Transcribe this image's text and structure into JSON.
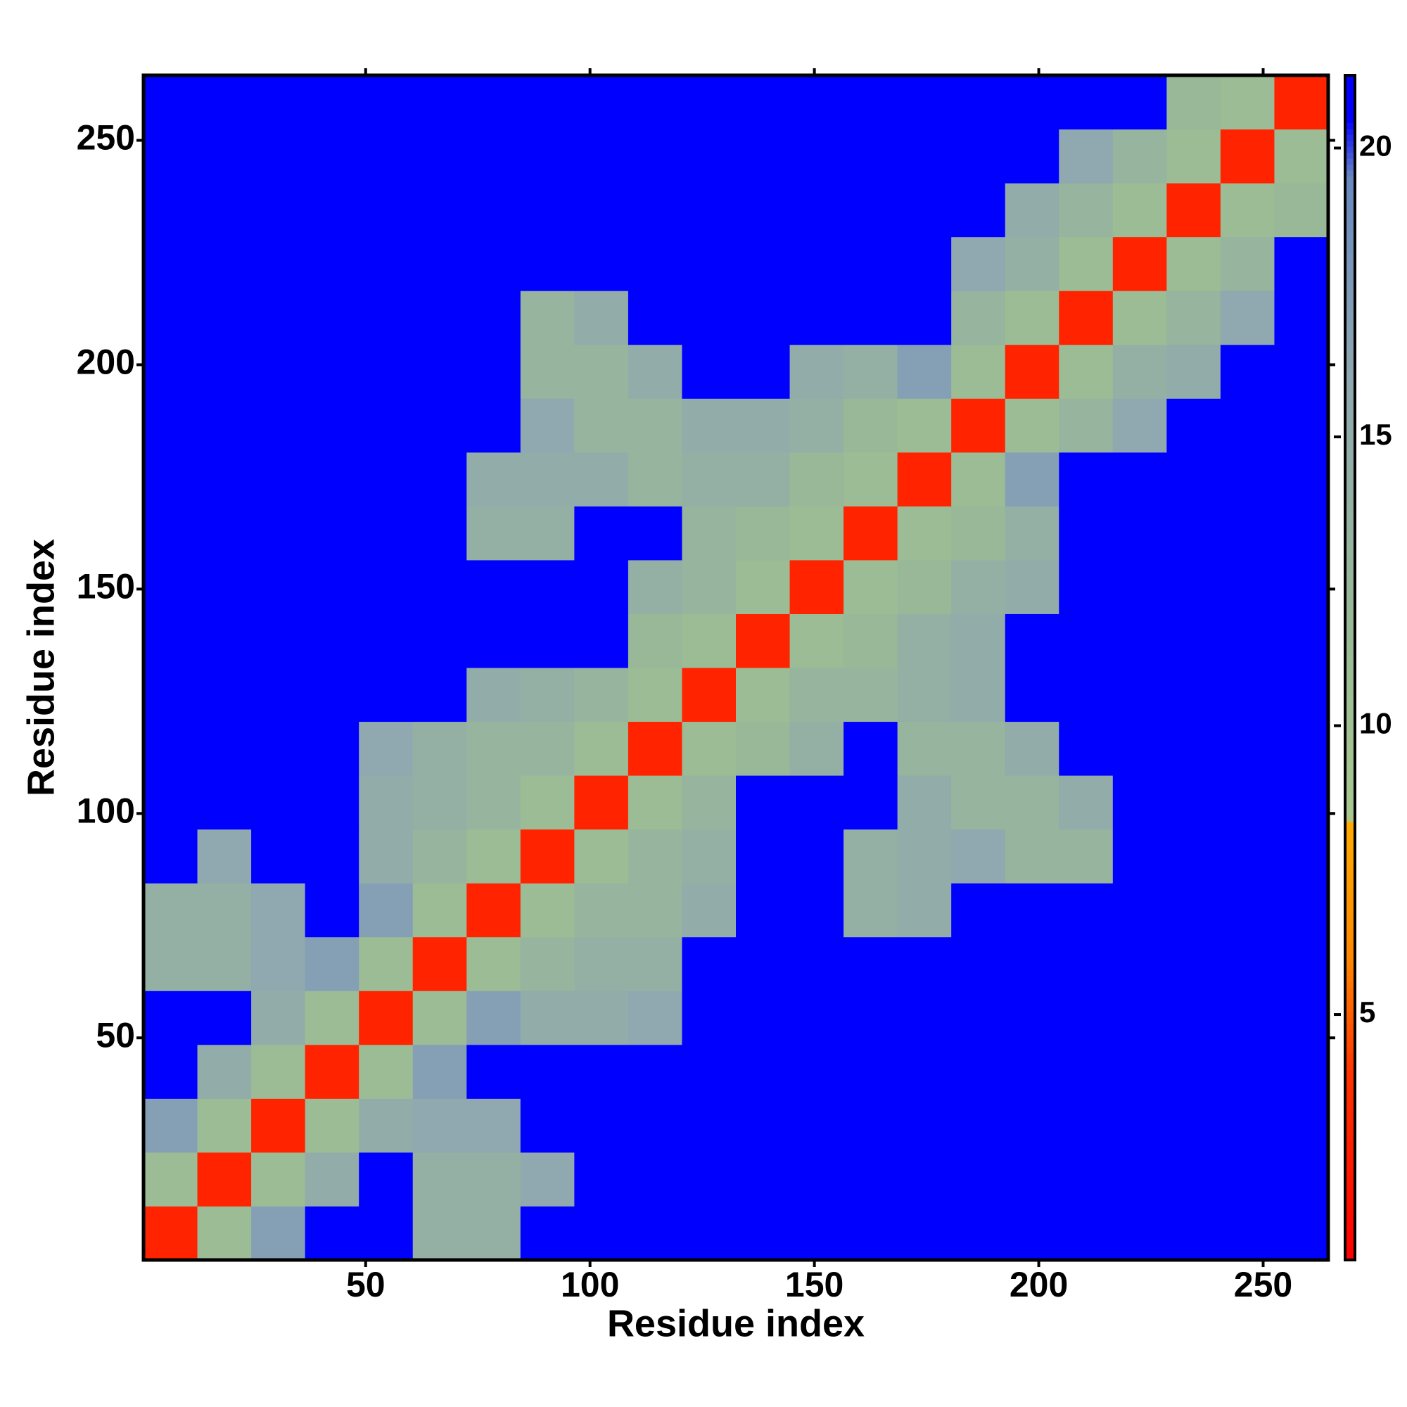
{
  "chart_data": {
    "type": "heatmap",
    "xlabel": "Residue index",
    "ylabel": "Residue index",
    "xlim": [
      0.5,
      264.5
    ],
    "ylim": [
      0.5,
      264.5
    ],
    "xticks": [
      50,
      100,
      150,
      200,
      250
    ],
    "yticks": [
      50,
      100,
      150,
      200,
      250
    ],
    "bins": [
      0.5,
      12.5,
      24.5,
      36.5,
      48.5,
      60.5,
      72.5,
      84.5,
      96.5,
      108.5,
      120.5,
      132.5,
      144.5,
      156.5,
      168.5,
      180.5,
      192.5,
      204.5,
      216.5,
      228.5,
      240.5,
      252.5,
      264.5
    ],
    "clim": [
      0.75,
      21.26
    ],
    "cticks": [
      5,
      10,
      15,
      20
    ],
    "colorscale": [
      [
        0.75,
        "#ff0000"
      ],
      [
        4,
        "#ff3300"
      ],
      [
        6,
        "#ff8800"
      ],
      [
        8.3,
        "#ffaa00"
      ],
      [
        8.4,
        "#a8c890"
      ],
      [
        12,
        "#98b898"
      ],
      [
        16,
        "#90a8b0"
      ],
      [
        19.5,
        "#6888c0"
      ],
      [
        20.5,
        "#0000ff"
      ],
      [
        21.26,
        "#0000ff"
      ]
    ],
    "z": [
      [
        3,
        11,
        17,
        21,
        21,
        14,
        14,
        21,
        21,
        21,
        21,
        21,
        21,
        21,
        21,
        21,
        21,
        21,
        21,
        21,
        21,
        21
      ],
      [
        11,
        3,
        11,
        15,
        21,
        14,
        14,
        16,
        21,
        21,
        21,
        21,
        21,
        21,
        21,
        21,
        21,
        21,
        21,
        21,
        21,
        21
      ],
      [
        17,
        11,
        3,
        11,
        15,
        16,
        16,
        21,
        21,
        21,
        21,
        21,
        21,
        21,
        21,
        21,
        21,
        21,
        21,
        21,
        21,
        21
      ],
      [
        21,
        15,
        11,
        3,
        11,
        17,
        21,
        21,
        21,
        21,
        21,
        21,
        21,
        21,
        21,
        21,
        21,
        21,
        21,
        21,
        21,
        21
      ],
      [
        21,
        21,
        15,
        11,
        3,
        11,
        17,
        15,
        15,
        16,
        21,
        21,
        21,
        21,
        21,
        21,
        21,
        21,
        21,
        21,
        21,
        21
      ],
      [
        14,
        14,
        16,
        17,
        11,
        3,
        11,
        13,
        14,
        14,
        21,
        21,
        21,
        21,
        21,
        21,
        21,
        21,
        21,
        21,
        21,
        21
      ],
      [
        14,
        14,
        16,
        21,
        17,
        11,
        3,
        11,
        13,
        13,
        15,
        21,
        21,
        14,
        15,
        21,
        21,
        21,
        21,
        21,
        21,
        21
      ],
      [
        21,
        16,
        21,
        21,
        15,
        13,
        11,
        3,
        11,
        13,
        14,
        21,
        21,
        14,
        15,
        16,
        13,
        13,
        21,
        21,
        21,
        21
      ],
      [
        21,
        21,
        21,
        21,
        15,
        14,
        13,
        11,
        3,
        11,
        13,
        21,
        21,
        21,
        15,
        13,
        13,
        15,
        21,
        21,
        21,
        21
      ],
      [
        21,
        21,
        21,
        21,
        16,
        14,
        13,
        13,
        11,
        3,
        11,
        12,
        14,
        21,
        13,
        13,
        15,
        21,
        21,
        21,
        21,
        21
      ],
      [
        21,
        21,
        21,
        21,
        21,
        21,
        15,
        14,
        13,
        11,
        3,
        11,
        13,
        13,
        14,
        15,
        21,
        21,
        21,
        21,
        21,
        21
      ],
      [
        21,
        21,
        21,
        21,
        21,
        21,
        21,
        21,
        21,
        12,
        11,
        3,
        11,
        12,
        14,
        15,
        21,
        21,
        21,
        21,
        21,
        21
      ],
      [
        21,
        21,
        21,
        21,
        21,
        21,
        21,
        21,
        21,
        14,
        13,
        11,
        3,
        11,
        12,
        14,
        15,
        21,
        21,
        21,
        21,
        21
      ],
      [
        21,
        21,
        21,
        21,
        21,
        21,
        14,
        14,
        21,
        21,
        13,
        12,
        11,
        3,
        11,
        12,
        14,
        21,
        21,
        21,
        21,
        21
      ],
      [
        21,
        21,
        21,
        21,
        21,
        21,
        15,
        15,
        15,
        13,
        14,
        14,
        12,
        11,
        3,
        11,
        17,
        21,
        21,
        21,
        21,
        21
      ],
      [
        21,
        21,
        21,
        21,
        21,
        21,
        21,
        16,
        13,
        13,
        15,
        15,
        14,
        12,
        11,
        3,
        11,
        13,
        16,
        21,
        21,
        21
      ],
      [
        21,
        21,
        21,
        21,
        21,
        21,
        21,
        13,
        13,
        15,
        21,
        21,
        15,
        14,
        17,
        11,
        3,
        11,
        14,
        15,
        21,
        21
      ],
      [
        21,
        21,
        21,
        21,
        21,
        21,
        21,
        13,
        15,
        21,
        21,
        21,
        21,
        21,
        21,
        13,
        11,
        3,
        11,
        13,
        16,
        21
      ],
      [
        21,
        21,
        21,
        21,
        21,
        21,
        21,
        21,
        21,
        21,
        21,
        21,
        21,
        21,
        21,
        16,
        14,
        11,
        3,
        11,
        13,
        21
      ],
      [
        21,
        21,
        21,
        21,
        21,
        21,
        21,
        21,
        21,
        21,
        21,
        21,
        21,
        21,
        21,
        21,
        15,
        13,
        11,
        3,
        11,
        12
      ],
      [
        21,
        21,
        21,
        21,
        21,
        21,
        21,
        21,
        21,
        21,
        21,
        21,
        21,
        21,
        21,
        21,
        21,
        16,
        13,
        11,
        3,
        11
      ],
      [
        21,
        21,
        21,
        21,
        21,
        21,
        21,
        21,
        21,
        21,
        21,
        21,
        21,
        21,
        21,
        21,
        21,
        21,
        21,
        12,
        11,
        3
      ]
    ]
  }
}
